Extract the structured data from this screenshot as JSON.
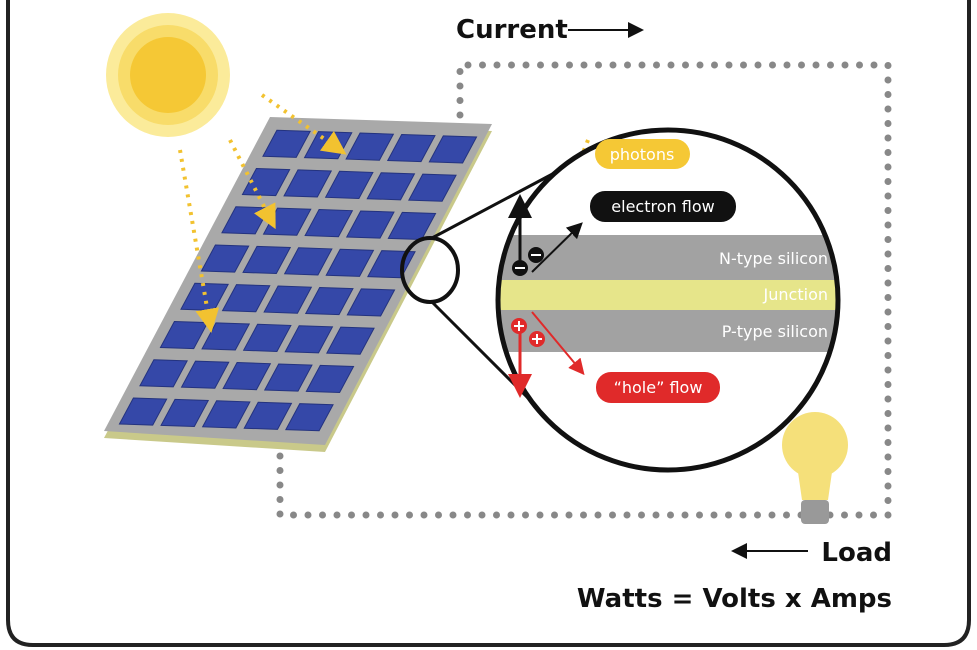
{
  "title": "Current",
  "photons": "photons",
  "electron_flow": "electron flow",
  "n_type": "N-type silicon",
  "junction": "Junction",
  "p_type": "P-type silicon",
  "hole_flow": "“hole” flow",
  "load": "Load",
  "formula": "Watts = Volts x Amps"
}
